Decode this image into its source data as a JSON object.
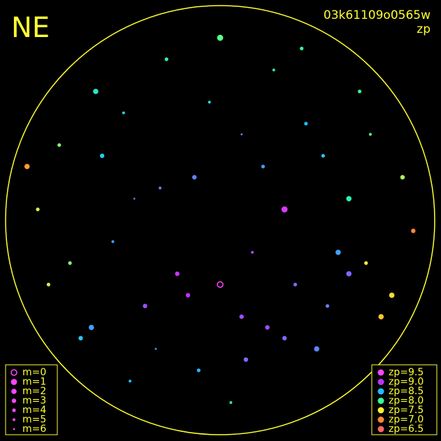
{
  "chart_data": {
    "type": "scatter",
    "title": "NE",
    "subtitle": "03k61109o0565w",
    "color_label": "zp",
    "xlim": [
      -1,
      1
    ],
    "ylim": [
      -1,
      1
    ],
    "x": [
      -0.12,
      0.35,
      -0.45,
      0.6,
      -0.7,
      0.1,
      0.25,
      -0.3,
      0.5,
      -0.55,
      0.8,
      -0.85,
      0.0,
      0.15,
      -0.2,
      0.4,
      -0.6,
      0.7,
      -0.1,
      0.3,
      -0.4,
      0.55,
      -0.75,
      0.9,
      -0.05,
      0.2,
      -0.35,
      0.45,
      -0.5,
      0.65,
      -0.65,
      0.75,
      0.05,
      -0.25,
      0.3,
      -0.15,
      0.1,
      0.6,
      -0.8,
      0.85,
      -0.9,
      0.0,
      0.38,
      -0.42,
      0.22,
      -0.58,
      0.68,
      -0.28,
      0.12,
      0.48
    ],
    "y": [
      0.2,
      -0.3,
      0.5,
      0.1,
      -0.2,
      -0.45,
      0.7,
      -0.6,
      -0.4,
      0.3,
      -0.35,
      0.05,
      0.85,
      -0.15,
      -0.25,
      0.45,
      -0.5,
      0.4,
      -0.7,
      -0.55,
      0.1,
      -0.15,
      0.35,
      -0.05,
      0.55,
      0.25,
      -0.4,
      -0.6,
      -0.1,
      0.6,
      -0.55,
      -0.45,
      -0.85,
      0.75,
      0.05,
      -0.35,
      0.4,
      -0.25,
      -0.3,
      0.2,
      0.25,
      -0.3,
      0.8,
      -0.75,
      -0.5,
      0.6,
      -0.2,
      0.15,
      -0.65,
      0.3
    ],
    "m": [
      3,
      4,
      5,
      2,
      4,
      3,
      5,
      6,
      4,
      3,
      2,
      4,
      1,
      5,
      3,
      4,
      2,
      5,
      4,
      3,
      6,
      2,
      4,
      3,
      5,
      4,
      3,
      2,
      5,
      4,
      3,
      2,
      5,
      4,
      1,
      3,
      6,
      2,
      4,
      3,
      2,
      0,
      4,
      5,
      3,
      2,
      4,
      5,
      3,
      4
    ],
    "zp": [
      8.7,
      8.8,
      8.3,
      8.1,
      7.8,
      8.9,
      8.2,
      8.6,
      8.7,
      8.4,
      7.4,
      7.6,
      7.9,
      8.9,
      9.1,
      8.5,
      8.6,
      7.9,
      8.5,
      8.8,
      8.8,
      8.6,
      7.8,
      7.0,
      8.3,
      8.6,
      8.9,
      8.7,
      8.6,
      8.0,
      8.4,
      7.3,
      8.2,
      8.1,
      9.2,
      9.0,
      8.7,
      8.8,
      7.6,
      7.7,
      7.1,
      9.5,
      8.0,
      8.5,
      8.9,
      8.2,
      7.5,
      8.7,
      8.8,
      8.4
    ],
    "size_legend": {
      "labels": [
        "m=0",
        "m=1",
        "m=2",
        "m=3",
        "m=4",
        "m=5",
        "m=6"
      ],
      "values": [
        0,
        1,
        2,
        3,
        4,
        5,
        6
      ]
    },
    "color_legend": {
      "labels": [
        "zp=9.5",
        "zp=9.0",
        "zp=8.5",
        "zp=8.0",
        "zp=7.5",
        "zp=7.0",
        "zp=6.5"
      ],
      "values": [
        9.5,
        9.0,
        8.5,
        8.0,
        7.5,
        7.0,
        6.5
      ],
      "colors": [
        "#ff44ff",
        "#bb33ff",
        "#22bbff",
        "#33ff99",
        "#ffee33",
        "#ff8833",
        "#ff6666"
      ]
    },
    "frame_color": "#ffff33"
  }
}
